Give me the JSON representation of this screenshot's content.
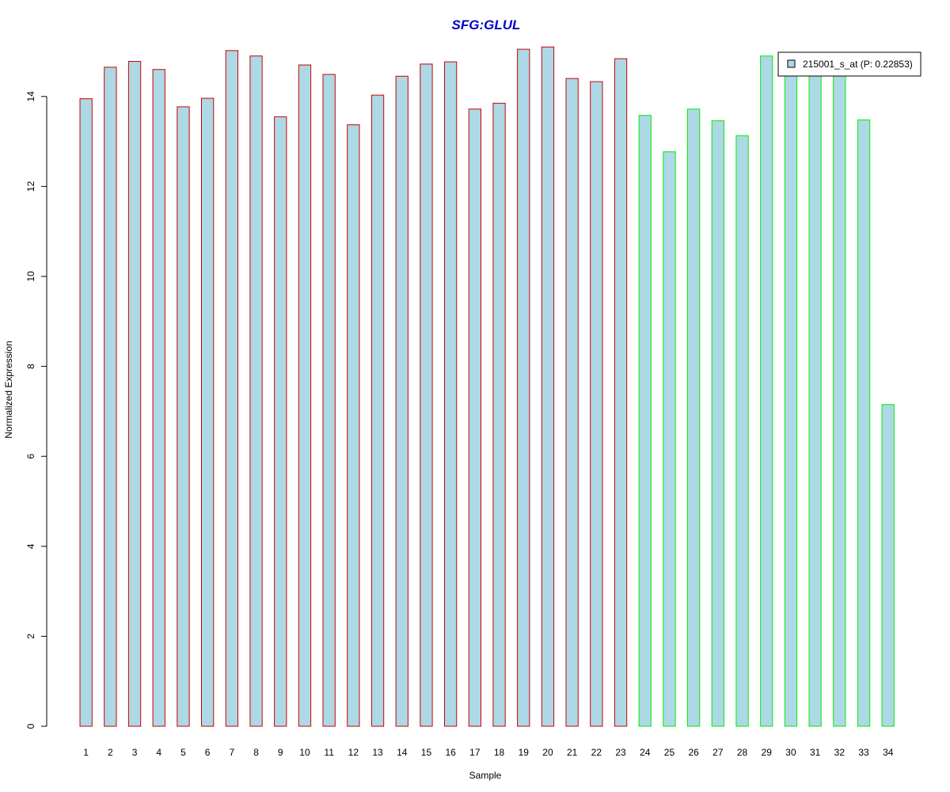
{
  "chart_data": {
    "type": "bar",
    "title": "SFG:GLUL",
    "title_color": "#0000CC",
    "xlabel": "Sample",
    "ylabel": "Normalized Expression",
    "ylim": [
      0,
      15.6
    ],
    "yticks": [
      0,
      2,
      4,
      6,
      8,
      10,
      12,
      14
    ],
    "grid": false,
    "legend_position": "top-right",
    "fill_color": "#ADD8E6",
    "group_colors": [
      "#CC0000",
      "#00EE00"
    ],
    "categories": [
      "1",
      "2",
      "3",
      "4",
      "5",
      "6",
      "7",
      "8",
      "9",
      "10",
      "11",
      "12",
      "13",
      "14",
      "15",
      "16",
      "17",
      "18",
      "19",
      "20",
      "21",
      "22",
      "23",
      "24",
      "25",
      "26",
      "27",
      "28",
      "29",
      "30",
      "31",
      "32",
      "33",
      "34"
    ],
    "series": [
      {
        "name": "215001_s_at (P: 0.22853)",
        "values": [
          13.95,
          14.65,
          14.78,
          14.6,
          13.77,
          13.96,
          15.02,
          14.9,
          13.55,
          14.7,
          14.49,
          13.37,
          14.03,
          14.45,
          14.72,
          14.77,
          13.72,
          13.85,
          15.05,
          15.1,
          14.4,
          14.33,
          14.84,
          13.58,
          12.77,
          13.72,
          13.46,
          13.13,
          14.9,
          14.5,
          14.5,
          14.5,
          13.48,
          7.15
        ],
        "group": [
          0,
          0,
          0,
          0,
          0,
          0,
          0,
          0,
          0,
          0,
          0,
          0,
          0,
          0,
          0,
          0,
          0,
          0,
          0,
          0,
          0,
          0,
          0,
          1,
          1,
          1,
          1,
          1,
          1,
          1,
          1,
          1,
          1,
          1
        ]
      }
    ]
  }
}
